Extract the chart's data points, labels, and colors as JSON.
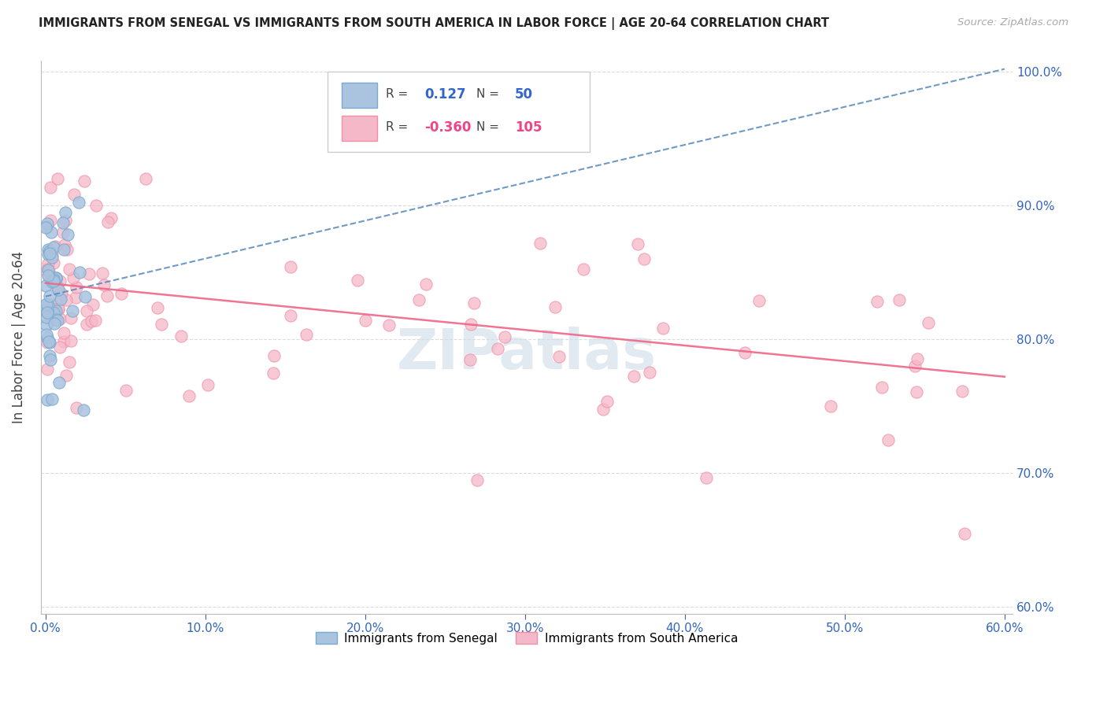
{
  "title": "IMMIGRANTS FROM SENEGAL VS IMMIGRANTS FROM SOUTH AMERICA IN LABOR FORCE | AGE 20-64 CORRELATION CHART",
  "source": "Source: ZipAtlas.com",
  "ylabel": "In Labor Force | Age 20-64",
  "xlim": [
    -0.003,
    0.605
  ],
  "ylim": [
    0.595,
    1.008
  ],
  "xticks": [
    0.0,
    0.1,
    0.2,
    0.3,
    0.4,
    0.5,
    0.6
  ],
  "xticklabels": [
    "0.0%",
    "10.0%",
    "20.0%",
    "30.0%",
    "40.0%",
    "50.0%",
    "60.0%"
  ],
  "yticks": [
    0.6,
    0.7,
    0.8,
    0.9,
    1.0
  ],
  "yticklabels": [
    "60.0%",
    "70.0%",
    "80.0%",
    "90.0%",
    "100.0%"
  ],
  "blue_R": 0.127,
  "blue_N": 50,
  "pink_R": -0.36,
  "pink_N": 105,
  "blue_color": "#aac4e0",
  "pink_color": "#f5b8c8",
  "blue_edge": "#7aaace",
  "pink_edge": "#f090a8",
  "blue_line_color": "#5588bb",
  "pink_line_color": "#ee6688",
  "watermark": "ZIPatlas",
  "watermark_color": "#d0dce8",
  "blue_line_x": [
    0.0,
    0.6
  ],
  "blue_line_y": [
    0.832,
    1.002
  ],
  "pink_line_x": [
    0.0,
    0.6
  ],
  "pink_line_y": [
    0.842,
    0.772
  ]
}
